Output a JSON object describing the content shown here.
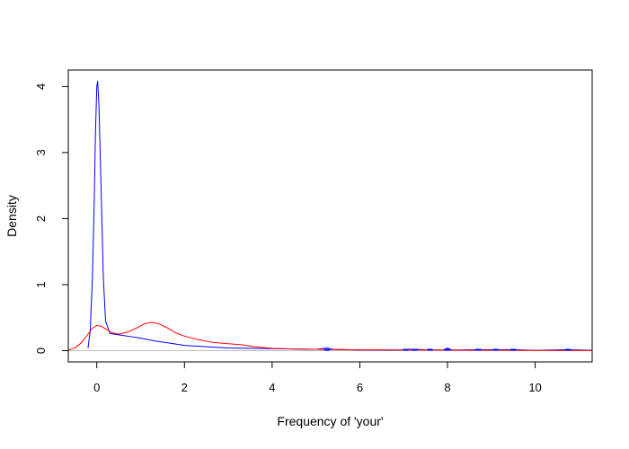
{
  "chart_data": {
    "type": "line",
    "title": "",
    "xlabel": "Frequency of 'your'",
    "ylabel": "Density",
    "xlim": [
      -0.65,
      11.3
    ],
    "ylim": [
      -0.17,
      4.25
    ],
    "x_ticks": [
      0,
      2,
      4,
      6,
      8,
      10
    ],
    "y_ticks": [
      0,
      1,
      2,
      3,
      4
    ],
    "grid": false,
    "legend": "none",
    "baseline": {
      "y": 0,
      "color": "#bebebe"
    },
    "series": [
      {
        "color": "#0000ff",
        "points": [
          [
            -0.2,
            0.04
          ],
          [
            -0.15,
            0.3
          ],
          [
            -0.1,
            1.1
          ],
          [
            -0.06,
            2.2
          ],
          [
            -0.03,
            3.3
          ],
          [
            0,
            4.0
          ],
          [
            0.02,
            4.08
          ],
          [
            0.05,
            3.7
          ],
          [
            0.1,
            2.4
          ],
          [
            0.15,
            1.1
          ],
          [
            0.2,
            0.45
          ],
          [
            0.3,
            0.26
          ],
          [
            0.5,
            0.24
          ],
          [
            0.8,
            0.21
          ],
          [
            1.0,
            0.19
          ],
          [
            1.3,
            0.15
          ],
          [
            1.6,
            0.12
          ],
          [
            2.0,
            0.08
          ],
          [
            2.5,
            0.06
          ],
          [
            3.0,
            0.04
          ],
          [
            3.5,
            0.035
          ],
          [
            4.0,
            0.03
          ],
          [
            4.5,
            0.025
          ],
          [
            5.0,
            0.02
          ],
          [
            5.25,
            0.04
          ],
          [
            5.4,
            0.02
          ],
          [
            6.0,
            0.01
          ],
          [
            6.9,
            0.008
          ],
          [
            7.05,
            0.02
          ],
          [
            7.3,
            0.02
          ],
          [
            7.6,
            0.01
          ],
          [
            7.9,
            0.01
          ],
          [
            8.0,
            0.04
          ],
          [
            8.1,
            0.01
          ],
          [
            8.7,
            0.015
          ],
          [
            9.1,
            0.015
          ],
          [
            9.5,
            0.015
          ],
          [
            10.0,
            0.005
          ],
          [
            10.75,
            0.015
          ],
          [
            11.3,
            0.005
          ]
        ]
      },
      {
        "color": "#ff0000",
        "points": [
          [
            -0.65,
            0.01
          ],
          [
            -0.5,
            0.04
          ],
          [
            -0.35,
            0.12
          ],
          [
            -0.2,
            0.25
          ],
          [
            -0.1,
            0.34
          ],
          [
            0,
            0.38
          ],
          [
            0.1,
            0.37
          ],
          [
            0.2,
            0.33
          ],
          [
            0.35,
            0.27
          ],
          [
            0.5,
            0.25
          ],
          [
            0.7,
            0.28
          ],
          [
            0.9,
            0.34
          ],
          [
            1.1,
            0.41
          ],
          [
            1.25,
            0.43
          ],
          [
            1.4,
            0.41
          ],
          [
            1.6,
            0.35
          ],
          [
            1.8,
            0.27
          ],
          [
            2.0,
            0.22
          ],
          [
            2.3,
            0.17
          ],
          [
            2.6,
            0.13
          ],
          [
            2.9,
            0.11
          ],
          [
            3.1,
            0.1
          ],
          [
            3.3,
            0.09
          ],
          [
            3.6,
            0.06
          ],
          [
            4.0,
            0.035
          ],
          [
            4.5,
            0.025
          ],
          [
            5.0,
            0.02
          ],
          [
            5.5,
            0.015
          ],
          [
            6.0,
            0.012
          ],
          [
            7.0,
            0.01
          ],
          [
            8.0,
            0.008
          ],
          [
            9.0,
            0.006
          ],
          [
            10.0,
            0.004
          ],
          [
            11.3,
            0.002
          ]
        ]
      }
    ],
    "rug": {
      "color": "#0000ff",
      "x": [
        5.25,
        7.05,
        7.25,
        7.6,
        8.0,
        8.7,
        9.1,
        9.5,
        10.75
      ]
    }
  }
}
